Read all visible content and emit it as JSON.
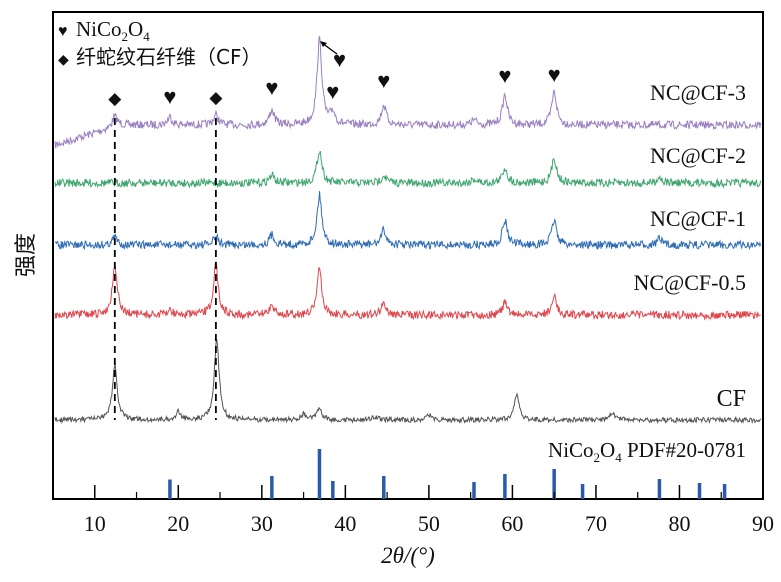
{
  "chart_data": {
    "type": "line",
    "title": "",
    "xlabel": "2θ/(°)",
    "ylabel": "强度",
    "xlim": [
      5,
      90
    ],
    "xticks": [
      10,
      20,
      30,
      40,
      50,
      60,
      70,
      80,
      90
    ],
    "grid": false,
    "legend": {
      "placement": "top-left",
      "entries": [
        {
          "marker": "heart",
          "label_main": "NiCo",
          "sub1": "2",
          "mid": "O",
          "sub2": "4"
        },
        {
          "marker": "diamond",
          "label": "纤蛇纹石纤维（CF）"
        }
      ]
    },
    "series": [
      {
        "name": "NC@CF-3",
        "color": "#9b80c2",
        "peaks": [
          [
            12.4,
            10
          ],
          [
            19.0,
            8
          ],
          [
            24.5,
            10
          ],
          [
            31.2,
            15
          ],
          [
            36.9,
            85
          ],
          [
            38.5,
            12
          ],
          [
            44.6,
            20
          ],
          [
            55.4,
            5
          ],
          [
            59.1,
            30
          ],
          [
            65.0,
            33
          ]
        ]
      },
      {
        "name": "NC@CF-2",
        "color": "#3ea66e",
        "peaks": [
          [
            31.2,
            8
          ],
          [
            36.9,
            33
          ],
          [
            44.6,
            8
          ],
          [
            55.4,
            4
          ],
          [
            59.1,
            15
          ],
          [
            65.0,
            25
          ],
          [
            77.6,
            6
          ]
        ]
      },
      {
        "name": "NC@CF-1",
        "color": "#2f6db5",
        "peaks": [
          [
            12.4,
            8
          ],
          [
            24.5,
            8
          ],
          [
            31.2,
            10
          ],
          [
            36.9,
            50
          ],
          [
            44.6,
            15
          ],
          [
            59.1,
            25
          ],
          [
            65.0,
            25
          ],
          [
            77.6,
            6
          ]
        ]
      },
      {
        "name": "NC@CF-0.5",
        "color": "#e0474d",
        "peaks": [
          [
            12.4,
            50
          ],
          [
            19.0,
            5
          ],
          [
            24.5,
            50
          ],
          [
            31.2,
            10
          ],
          [
            36.9,
            45
          ],
          [
            44.6,
            12
          ],
          [
            59.1,
            12
          ],
          [
            65.0,
            18
          ]
        ]
      },
      {
        "name": "CF",
        "color": "#555555",
        "peaks": [
          [
            12.4,
            55
          ],
          [
            20.0,
            8
          ],
          [
            24.6,
            80
          ],
          [
            35.0,
            6
          ],
          [
            36.9,
            12
          ],
          [
            43.5,
            4
          ],
          [
            50.0,
            5
          ],
          [
            60.5,
            25
          ],
          [
            72.0,
            8
          ]
        ]
      }
    ],
    "reference": {
      "label_main": "NiCo",
      "sub1": "2",
      "mid": "O",
      "sub2": "4",
      "label_tail": " PDF#20-0781",
      "color": "#2a5aa8",
      "lines": [
        [
          19.0,
          39
        ],
        [
          31.2,
          46
        ],
        [
          36.9,
          100
        ],
        [
          38.5,
          36
        ],
        [
          44.6,
          46
        ],
        [
          55.4,
          34
        ],
        [
          59.1,
          50
        ],
        [
          65.0,
          60
        ],
        [
          68.4,
          30
        ],
        [
          77.6,
          40
        ],
        [
          82.4,
          32
        ],
        [
          85.4,
          30
        ]
      ]
    },
    "annotations": {
      "diamonds": [
        12.4,
        24.5
      ],
      "hearts": [
        19.0,
        31.2,
        38.5,
        39.3,
        44.6,
        59.1,
        65.0
      ],
      "dashed_lines": [
        12.4,
        24.5
      ]
    }
  }
}
